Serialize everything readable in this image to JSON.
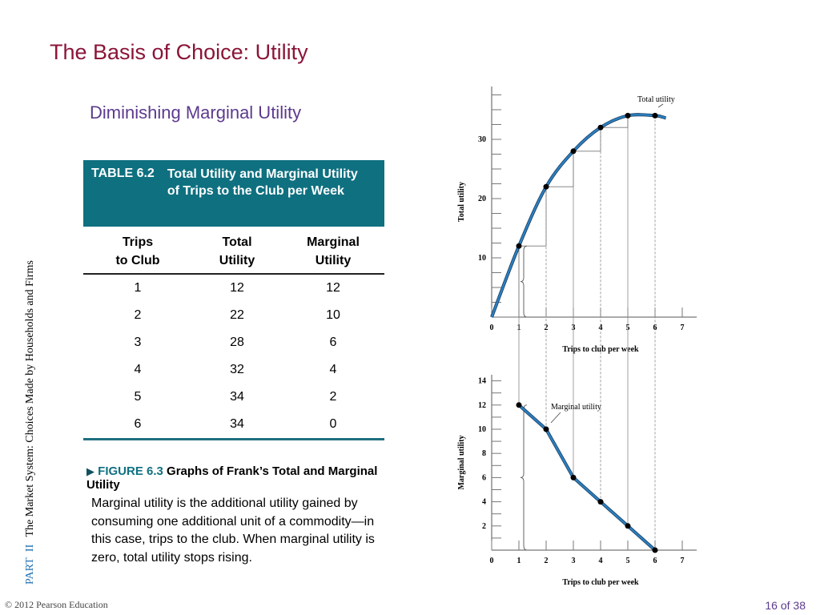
{
  "slide": {
    "title": "The Basis of Choice: Utility",
    "subtitle": "Diminishing Marginal Utility",
    "side_part": "PART",
    "side_part_num": "II",
    "side_text": "The Market System: Choices Made by Households and Firms",
    "copyright": "© 2012 Pearson Education",
    "page": "16 of 38"
  },
  "table": {
    "number": "TABLE 6.2",
    "caption": "Total Utility and Marginal Utility of Trips to the Club per Week",
    "headers": [
      [
        "Trips",
        "to Club"
      ],
      [
        "Total",
        "Utility"
      ],
      [
        "Marginal",
        "Utility"
      ]
    ],
    "rows": [
      [
        "1",
        "12",
        "12"
      ],
      [
        "2",
        "22",
        "10"
      ],
      [
        "3",
        "28",
        "6"
      ],
      [
        "4",
        "32",
        "4"
      ],
      [
        "5",
        "34",
        "2"
      ],
      [
        "6",
        "34",
        "0"
      ]
    ]
  },
  "figure": {
    "arrow": "▶",
    "label": "FIGURE 6.3",
    "title": "Graphs of Frank’s Total and Marginal Utility",
    "description": "Marginal utility is the additional utility gained by consuming one additional unit of a commodity—in this case, trips to the club. When marginal utility is zero, total utility stops rising."
  },
  "chart_data": [
    {
      "type": "line",
      "annotation": "Total utility",
      "xlabel": "Trips to club per week",
      "ylabel": "Total utility",
      "x": [
        0,
        1,
        2,
        3,
        4,
        5,
        6
      ],
      "y": [
        0,
        12,
        22,
        28,
        32,
        34,
        34
      ],
      "xticks": [
        "0",
        "1",
        "2",
        "3",
        "4",
        "5",
        "6",
        "7"
      ],
      "yticks": [
        "10",
        "20",
        "30"
      ],
      "xlim": [
        0,
        7
      ],
      "ylim": [
        0,
        39
      ],
      "line_color": "#2a7fc0",
      "marker_color": "#000000"
    },
    {
      "type": "line",
      "annotation": "Marginal utility",
      "xlabel": "Trips to club per week",
      "ylabel": "Marginal utility",
      "x": [
        1,
        2,
        3,
        4,
        5,
        6
      ],
      "y": [
        12,
        10,
        6,
        4,
        2,
        0
      ],
      "xticks": [
        "0",
        "1",
        "2",
        "3",
        "4",
        "5",
        "6",
        "7"
      ],
      "yticks": [
        "2",
        "4",
        "6",
        "8",
        "10",
        "12",
        "14"
      ],
      "xlim": [
        0,
        7
      ],
      "ylim": [
        0,
        15
      ],
      "line_color": "#2a7fc0",
      "marker_color": "#000000"
    }
  ]
}
